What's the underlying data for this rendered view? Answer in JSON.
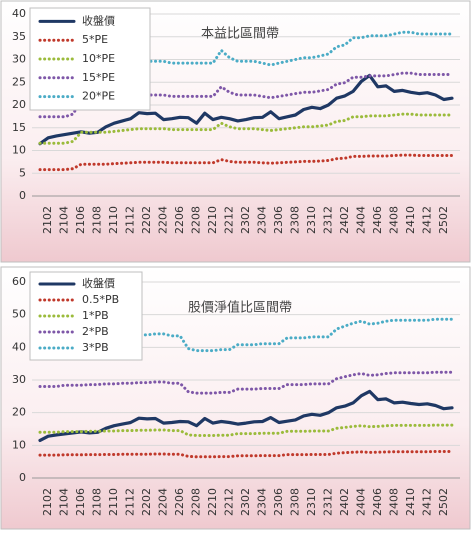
{
  "chart_data": [
    {
      "type": "line",
      "title": "本益比區間帶",
      "legend": "upper left",
      "grid": true,
      "categories": [
        null,
        "2102",
        null,
        "2104",
        null,
        "2106",
        null,
        "2108",
        null,
        "2110",
        null,
        "2112",
        null,
        "2202",
        null,
        "2204",
        null,
        "2206",
        null,
        "2208",
        null,
        "2210",
        null,
        "2212",
        null,
        "2302",
        null,
        "2304",
        null,
        "2306",
        null,
        "2308",
        null,
        "2310",
        null,
        "2312",
        null,
        "2402",
        null,
        "2404",
        null,
        "2406",
        null,
        "2408",
        null,
        "2410",
        null,
        "2412",
        null,
        "2502",
        null
      ],
      "ylim": [
        0,
        40
      ],
      "yticks": [
        0,
        5,
        10,
        15,
        20,
        25,
        30,
        35,
        40
      ],
      "series": [
        {
          "name": "收盤價",
          "color": "#1f3864",
          "dashed": false,
          "values": [
            11.5,
            12.8,
            13.2,
            13.5,
            13.8,
            14.1,
            13.8,
            14.0,
            15.2,
            16.0,
            16.5,
            17.0,
            18.3,
            18.1,
            18.2,
            16.8,
            17.0,
            17.3,
            17.2,
            16.0,
            18.2,
            16.8,
            17.3,
            17.0,
            16.5,
            16.8,
            17.2,
            17.3,
            18.5,
            17.0,
            17.4,
            17.8,
            19.0,
            19.5,
            19.2,
            20.0,
            21.5,
            22.0,
            23.0,
            25.2,
            26.5,
            24.0,
            24.2,
            23.0,
            23.2,
            22.8,
            22.5,
            22.7,
            22.2,
            21.2,
            21.5
          ]
        },
        {
          "name": "5*PE",
          "color": "#c0392b",
          "dashed": true,
          "values": [
            5.8,
            5.8,
            5.8,
            5.8,
            6.0,
            7.0,
            7.0,
            7.0,
            7.0,
            7.1,
            7.2,
            7.3,
            7.4,
            7.4,
            7.4,
            7.4,
            7.3,
            7.3,
            7.3,
            7.3,
            7.3,
            7.3,
            8.0,
            7.6,
            7.4,
            7.4,
            7.4,
            7.3,
            7.2,
            7.3,
            7.4,
            7.5,
            7.6,
            7.6,
            7.7,
            7.8,
            8.2,
            8.3,
            8.7,
            8.7,
            8.8,
            8.8,
            8.8,
            8.9,
            9.0,
            9.0,
            8.9,
            8.9,
            8.9,
            8.9,
            8.9
          ]
        },
        {
          "name": "10*PE",
          "color": "#9bbb3b",
          "dashed": true,
          "values": [
            11.6,
            11.6,
            11.6,
            11.6,
            12,
            14,
            14,
            14,
            14,
            14.2,
            14.4,
            14.6,
            14.8,
            14.8,
            14.8,
            14.8,
            14.6,
            14.6,
            14.6,
            14.6,
            14.6,
            14.6,
            16,
            15.2,
            14.8,
            14.8,
            14.8,
            14.6,
            14.4,
            14.6,
            14.8,
            15,
            15.2,
            15.2,
            15.4,
            15.6,
            16.4,
            16.6,
            17.4,
            17.4,
            17.6,
            17.6,
            17.6,
            17.8,
            18,
            18,
            17.8,
            17.8,
            17.8,
            17.8,
            17.8
          ]
        },
        {
          "name": "15*PE",
          "color": "#7e57a8",
          "dashed": true,
          "values": [
            17.4,
            17.4,
            17.4,
            17.4,
            18,
            21,
            21,
            21,
            21,
            21.3,
            21.6,
            21.9,
            22.2,
            22.2,
            22.2,
            22.2,
            21.9,
            21.9,
            21.9,
            21.9,
            21.9,
            21.9,
            24,
            22.8,
            22.2,
            22.2,
            22.2,
            21.9,
            21.6,
            21.9,
            22.2,
            22.5,
            22.8,
            22.8,
            23.1,
            23.4,
            24.6,
            24.9,
            26.1,
            26.1,
            26.4,
            26.4,
            26.4,
            26.7,
            27,
            27,
            26.7,
            26.7,
            26.7,
            26.7,
            26.7
          ]
        },
        {
          "name": "20*PE",
          "color": "#4bacc6",
          "dashed": true,
          "values": [
            23.2,
            23.2,
            23.2,
            23.2,
            24,
            28,
            28,
            28,
            28,
            28.4,
            28.8,
            29.2,
            29.6,
            29.6,
            29.6,
            29.6,
            29.2,
            29.2,
            29.2,
            29.2,
            29.2,
            29.2,
            32,
            30.4,
            29.6,
            29.6,
            29.6,
            29.2,
            28.8,
            29.2,
            29.6,
            30,
            30.4,
            30.4,
            30.8,
            31.2,
            32.8,
            33.2,
            34.8,
            34.8,
            35.2,
            35.2,
            35.2,
            35.6,
            36,
            36,
            35.6,
            35.6,
            35.6,
            35.6,
            35.6
          ]
        }
      ]
    },
    {
      "type": "line",
      "title": "股價淨值比區間帶",
      "legend": "upper left",
      "grid": true,
      "categories": [
        null,
        "2102",
        null,
        "2104",
        null,
        "2106",
        null,
        "2108",
        null,
        "2110",
        null,
        "2112",
        null,
        "2202",
        null,
        "2204",
        null,
        "2206",
        null,
        "2208",
        null,
        "2210",
        null,
        "2212",
        null,
        "2302",
        null,
        "2304",
        null,
        "2306",
        null,
        "2308",
        null,
        "2310",
        null,
        "2312",
        null,
        "2402",
        null,
        "2404",
        null,
        "2406",
        null,
        "2408",
        null,
        "2410",
        null,
        "2412",
        null,
        "2502",
        null
      ],
      "ylim": [
        0,
        60
      ],
      "yticks": [
        0,
        10,
        20,
        30,
        40,
        50,
        60
      ],
      "series": [
        {
          "name": "收盤價",
          "color": "#1f3864",
          "dashed": false,
          "values": [
            11.5,
            12.8,
            13.2,
            13.5,
            13.8,
            14.1,
            13.8,
            14.0,
            15.2,
            16.0,
            16.5,
            17.0,
            18.3,
            18.1,
            18.2,
            16.8,
            17.0,
            17.3,
            17.2,
            16.0,
            18.2,
            16.8,
            17.3,
            17.0,
            16.5,
            16.8,
            17.2,
            17.3,
            18.5,
            17.0,
            17.4,
            17.8,
            19.0,
            19.5,
            19.2,
            20.0,
            21.5,
            22.0,
            23.0,
            25.2,
            26.5,
            24.0,
            24.2,
            23.0,
            23.2,
            22.8,
            22.5,
            22.7,
            22.2,
            21.2,
            21.5
          ]
        },
        {
          "name": "0.5*PB",
          "color": "#c0392b",
          "dashed": true,
          "values": [
            7,
            7,
            7,
            7.1,
            7.1,
            7.1,
            7.15,
            7.15,
            7.2,
            7.2,
            7.25,
            7.25,
            7.3,
            7.3,
            7.35,
            7.35,
            7.25,
            7.25,
            6.6,
            6.5,
            6.5,
            6.5,
            6.55,
            6.55,
            6.8,
            6.8,
            6.8,
            6.85,
            6.85,
            6.85,
            7.15,
            7.15,
            7.15,
            7.2,
            7.2,
            7.2,
            7.6,
            7.75,
            7.9,
            8,
            7.85,
            7.9,
            8,
            8.05,
            8.05,
            8.05,
            8.05,
            8.05,
            8.1,
            8.1,
            8.1
          ]
        },
        {
          "name": "1*PB",
          "color": "#9bbb3b",
          "dashed": true,
          "values": [
            14.0,
            14.0,
            14.0,
            14.2,
            14.2,
            14.2,
            14.3,
            14.3,
            14.4,
            14.4,
            14.5,
            14.5,
            14.6,
            14.6,
            14.7,
            14.7,
            14.5,
            14.5,
            13.2,
            13.0,
            13.0,
            13.0,
            13.1,
            13.1,
            13.6,
            13.6,
            13.6,
            13.7,
            13.7,
            13.7,
            14.3,
            14.3,
            14.3,
            14.4,
            14.4,
            14.4,
            15.2,
            15.5,
            15.8,
            16.0,
            15.7,
            15.8,
            16.0,
            16.1,
            16.1,
            16.1,
            16.1,
            16.1,
            16.2,
            16.2,
            16.2
          ]
        },
        {
          "name": "2*PB",
          "color": "#7e57a8",
          "dashed": true,
          "values": [
            28,
            28,
            28,
            28.4,
            28.4,
            28.4,
            28.6,
            28.6,
            28.8,
            28.8,
            29,
            29,
            29.2,
            29.2,
            29.4,
            29.4,
            29,
            29,
            26.4,
            26,
            26,
            26,
            26.2,
            26.2,
            27.2,
            27.2,
            27.2,
            27.4,
            27.4,
            27.4,
            28.6,
            28.6,
            28.6,
            28.8,
            28.8,
            28.8,
            30.4,
            31,
            31.6,
            32,
            31.4,
            31.6,
            32,
            32.2,
            32.2,
            32.2,
            32.2,
            32.2,
            32.4,
            32.4,
            32.4
          ]
        },
        {
          "name": "3*PB",
          "color": "#4bacc6",
          "dashed": true,
          "values": [
            42,
            42,
            42,
            42.6,
            42.6,
            42.6,
            42.9,
            42.9,
            43.2,
            43.2,
            43.5,
            43.5,
            43.8,
            43.8,
            44.1,
            44.1,
            43.5,
            43.5,
            39.6,
            39,
            39,
            39,
            39.3,
            39.3,
            40.8,
            40.8,
            40.8,
            41.1,
            41.1,
            41.1,
            42.9,
            42.9,
            42.9,
            43.2,
            43.2,
            43.2,
            45.6,
            46.5,
            47.4,
            48,
            47.1,
            47.4,
            48,
            48.3,
            48.3,
            48.3,
            48.3,
            48.3,
            48.6,
            48.6,
            48.6
          ]
        }
      ]
    }
  ]
}
